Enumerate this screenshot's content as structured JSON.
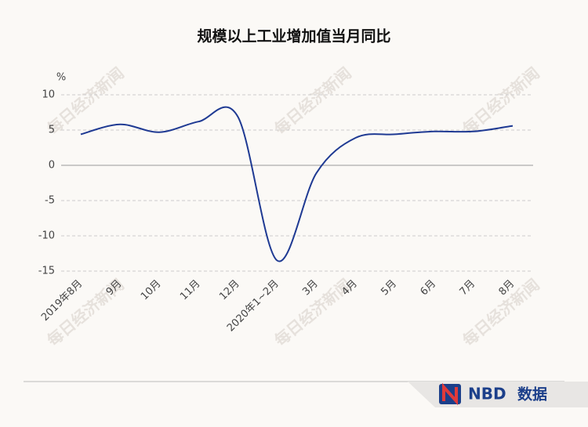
{
  "chart_data": {
    "type": "line",
    "title": "规模以上工业增加值当月同比",
    "unit": "%",
    "categories": [
      "2019年8月",
      "9月",
      "10月",
      "11月",
      "12月",
      "2020年1~2月",
      "3月",
      "4月",
      "5月",
      "6月",
      "7月",
      "8月"
    ],
    "series": [
      {
        "color": "#1f3a93",
        "values": [
          4.4,
          5.8,
          4.7,
          6.2,
          6.9,
          -13.5,
          -1.1,
          3.9,
          4.4,
          4.8,
          4.8,
          5.6
        ]
      }
    ],
    "ylim": [
      -15,
      10
    ],
    "yticks": [
      -15,
      -10,
      -5,
      0,
      5,
      10
    ],
    "grid": true
  },
  "watermark": "每日经济新闻",
  "footer": {
    "logo": "NBD",
    "label": "数据"
  }
}
